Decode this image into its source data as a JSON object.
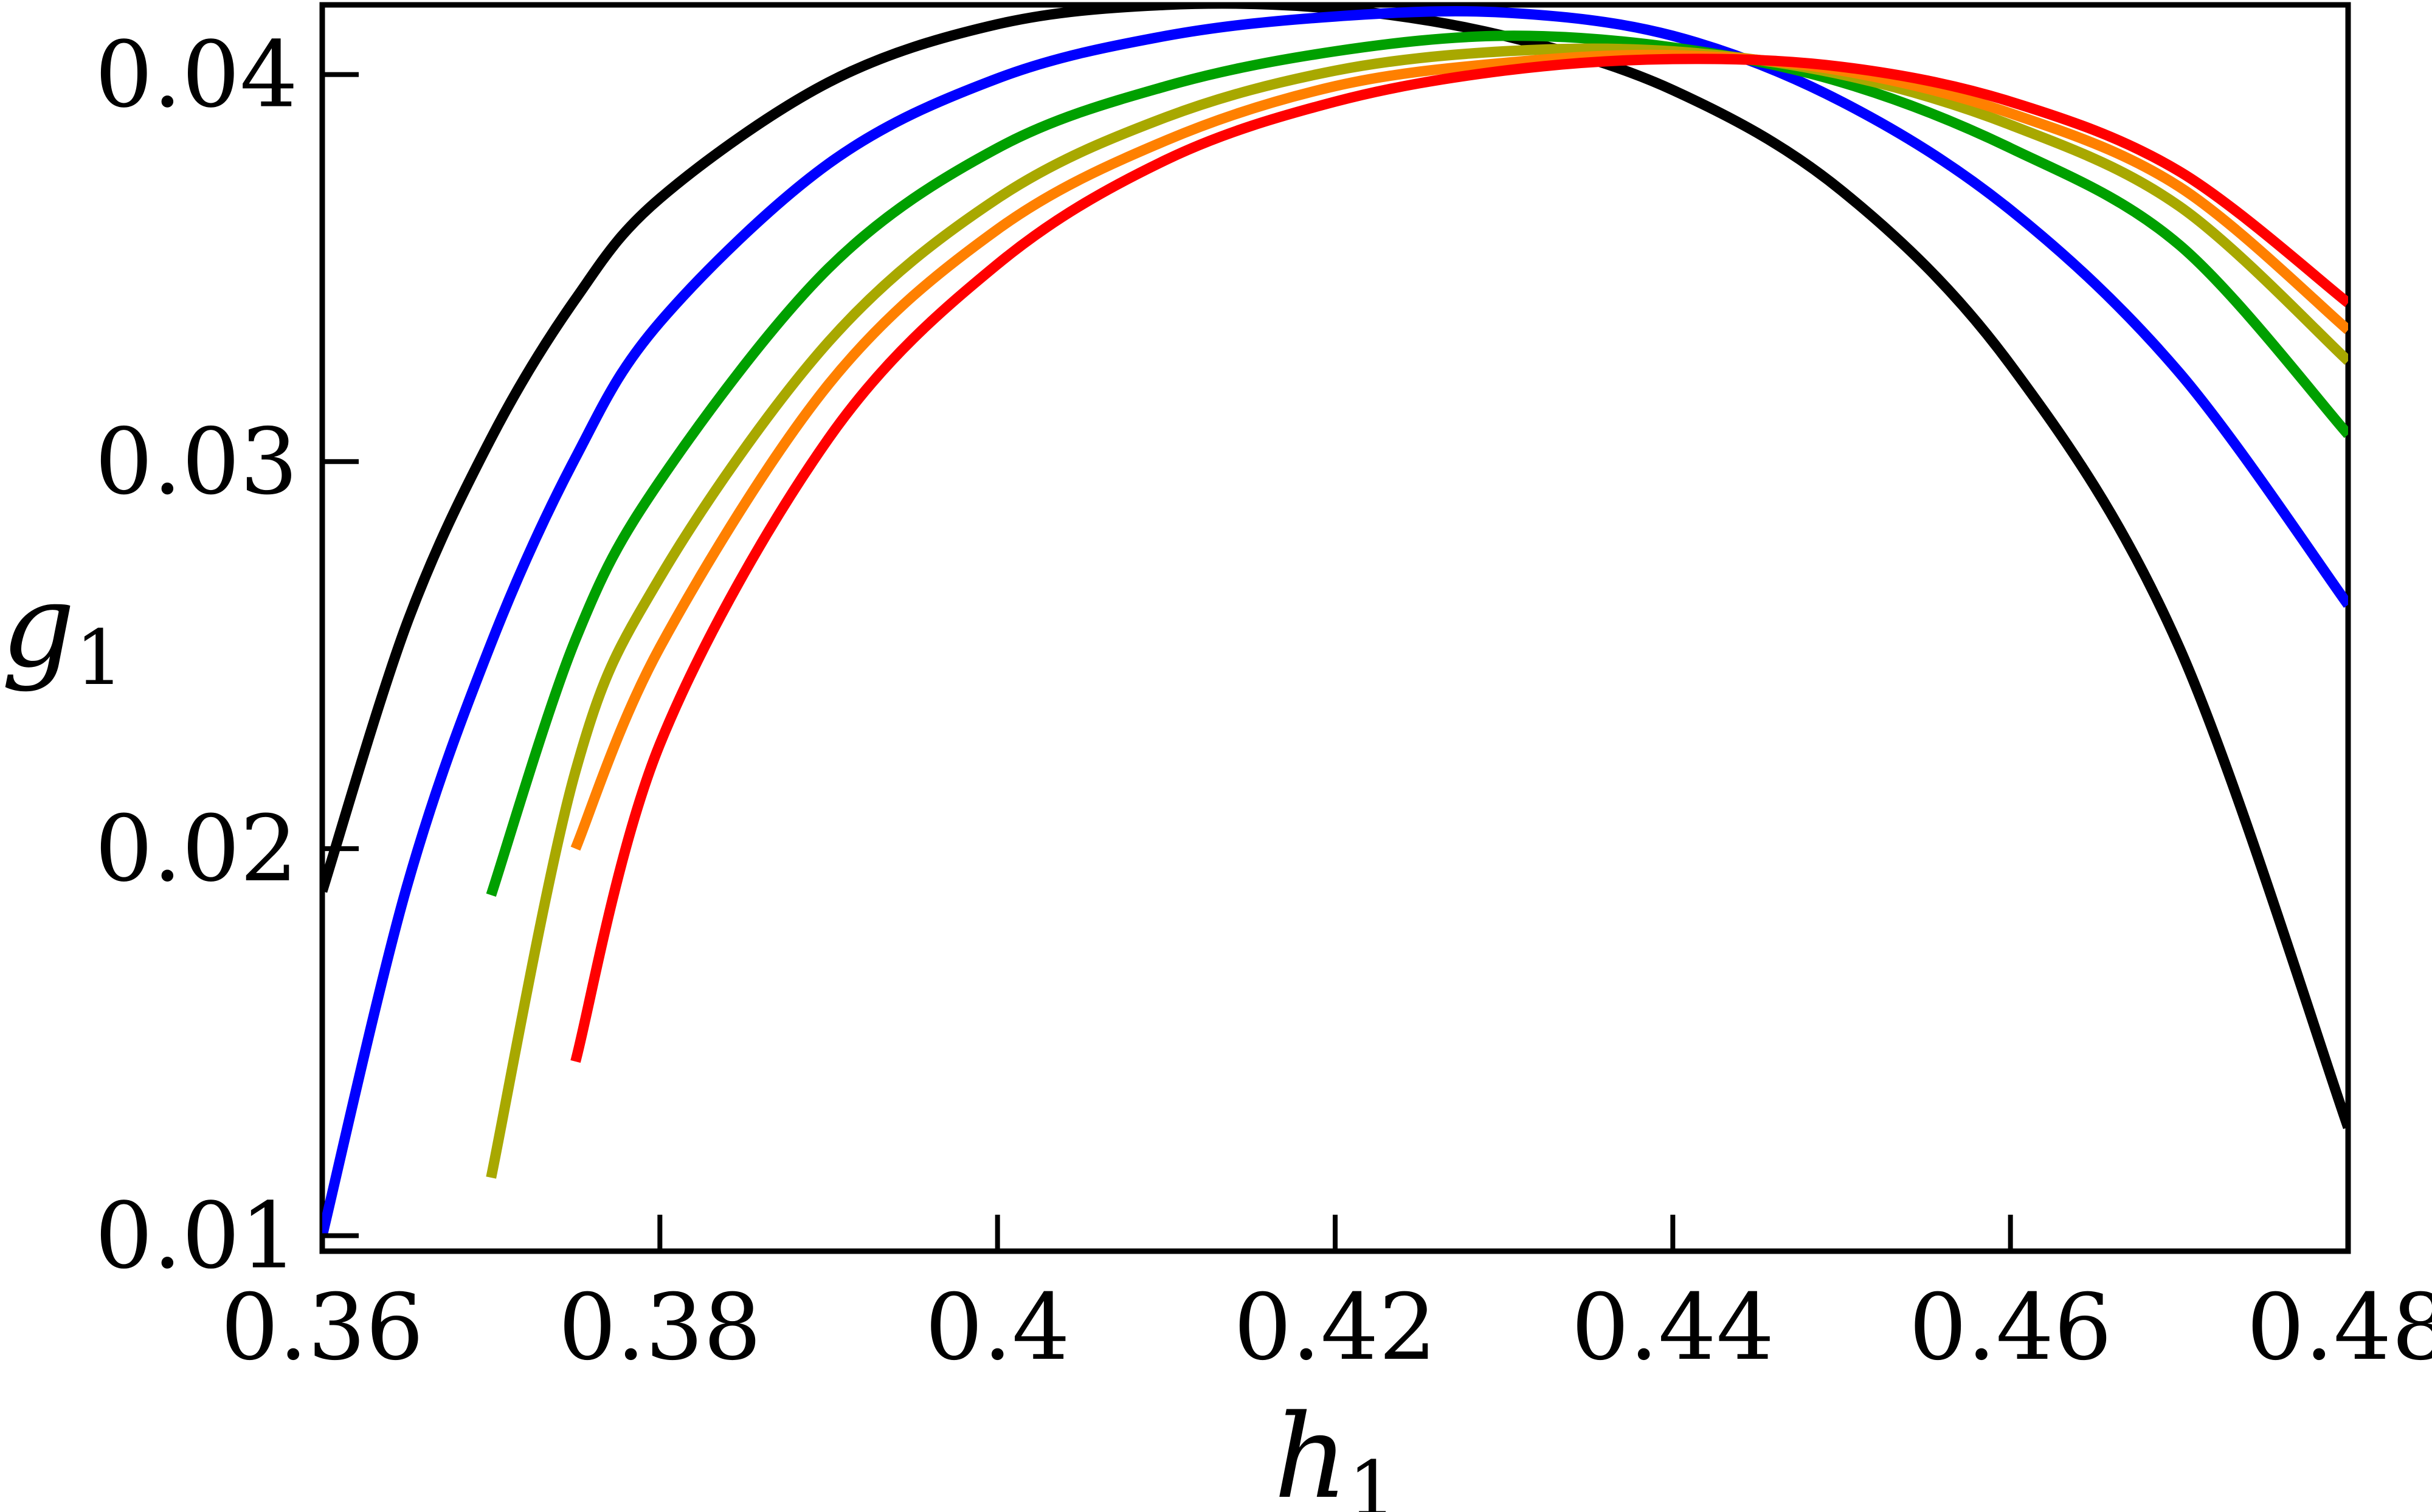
{
  "chart_data": {
    "type": "line",
    "title": "",
    "xlabel": "h",
    "xlabel_sub": "1",
    "ylabel": "g",
    "ylabel_sub": "1",
    "xlim": [
      0.36,
      0.48
    ],
    "ylim": [
      0.0096,
      0.0418
    ],
    "xticks": [
      "0.36",
      "0.38",
      "0.4",
      "0.42",
      "0.44",
      "0.46",
      "0.48"
    ],
    "yticks": [
      "0.01",
      "0.02",
      "0.03",
      "0.04"
    ],
    "grid": false,
    "legend": "none",
    "x": [
      0.36,
      0.365,
      0.37,
      0.375,
      0.38,
      0.39,
      0.4,
      0.41,
      0.42,
      0.43,
      0.44,
      0.45,
      0.46,
      0.47,
      0.48
    ],
    "series": [
      {
        "color": "#000000",
        "values": [
          0.0189,
          0.0258,
          0.0306,
          0.0342,
          0.0368,
          0.0398,
          0.0413,
          0.0418,
          0.0417,
          0.041,
          0.0396,
          0.037,
          0.0325,
          0.0252,
          0.0128
        ]
      },
      {
        "color": "#0000ff",
        "values": [
          0.01,
          0.019,
          0.0253,
          0.0301,
          0.0336,
          0.0377,
          0.0399,
          0.041,
          0.0415,
          0.0416,
          0.041,
          0.0393,
          0.0365,
          0.0323,
          0.0263
        ]
      },
      {
        "color": "#00a000",
        "values": [
          null,
          null,
          0.0188,
          0.0254,
          0.0295,
          0.035,
          0.0381,
          0.0397,
          0.0406,
          0.041,
          0.0407,
          0.0398,
          0.0381,
          0.0356,
          0.0307
        ]
      },
      {
        "color": "#a8a800",
        "values": [
          null,
          null,
          0.0115,
          0.022,
          0.027,
          0.0331,
          0.0368,
          0.0389,
          0.0401,
          0.0406,
          0.0406,
          0.04,
          0.0387,
          0.0366,
          0.0326
        ]
      },
      {
        "color": "#ff8000",
        "values": [
          null,
          null,
          null,
          0.02,
          0.0252,
          0.032,
          0.036,
          0.0383,
          0.0397,
          0.0403,
          0.0405,
          0.0401,
          0.039,
          0.0371,
          0.0334
        ]
      },
      {
        "color": "#ff0000",
        "values": [
          null,
          null,
          null,
          0.0145,
          0.0227,
          0.0306,
          0.0351,
          0.0378,
          0.0393,
          0.0401,
          0.0404,
          0.0402,
          0.0393,
          0.0375,
          0.0341
        ]
      }
    ]
  }
}
